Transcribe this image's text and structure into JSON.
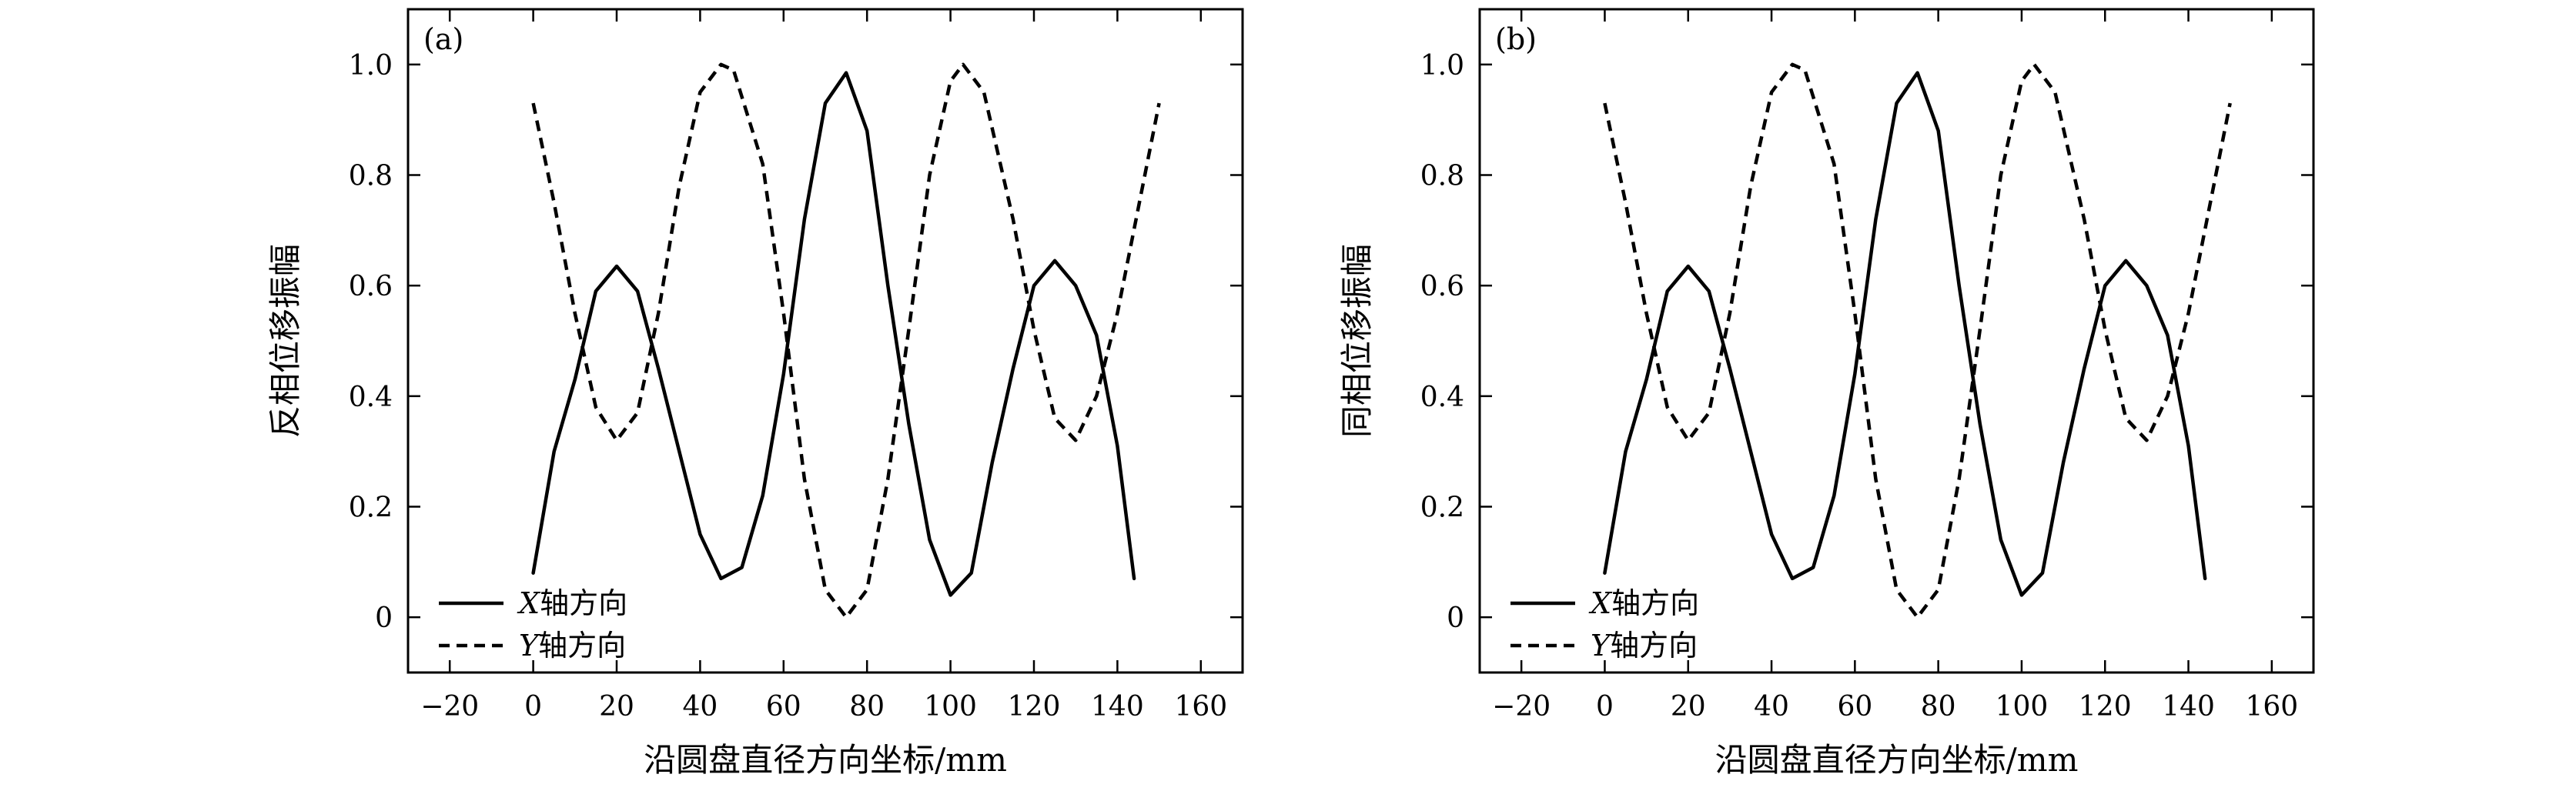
{
  "colors": {
    "background": "#ffffff",
    "ink": "#000000"
  },
  "chart_data": [
    {
      "type": "line",
      "panel_label": "(a)",
      "xlabel": "沿圆盘直径方向坐标/mm",
      "ylabel": "反相位移振幅",
      "xlim": [
        -30,
        170
      ],
      "ylim": [
        -0.1,
        1.1
      ],
      "xticks": [
        -20,
        0,
        20,
        40,
        60,
        80,
        100,
        120,
        140,
        160
      ],
      "yticks": [
        0,
        0.2,
        0.4,
        0.6,
        0.8,
        1.0
      ],
      "xtick_labels": [
        "−20",
        "0",
        "20",
        "40",
        "60",
        "80",
        "100",
        "120",
        "140",
        "160"
      ],
      "ytick_labels": [
        "0",
        "0.2",
        "0.4",
        "0.6",
        "0.8",
        "1.0"
      ],
      "grid": false,
      "legend_position": "bottom-left",
      "series": [
        {
          "name_axis": "X",
          "name_suffix": "轴方向",
          "style": "solid",
          "x": [
            0,
            5,
            10,
            15,
            20,
            25,
            30,
            35,
            40,
            45,
            50,
            55,
            60,
            65,
            70,
            75,
            80,
            85,
            90,
            95,
            100,
            105,
            110,
            115,
            120,
            125,
            130,
            135,
            140,
            144
          ],
          "y": [
            0.08,
            0.3,
            0.43,
            0.59,
            0.635,
            0.59,
            0.45,
            0.3,
            0.15,
            0.07,
            0.09,
            0.22,
            0.44,
            0.72,
            0.93,
            0.985,
            0.88,
            0.6,
            0.35,
            0.14,
            0.04,
            0.08,
            0.28,
            0.45,
            0.6,
            0.645,
            0.6,
            0.51,
            0.31,
            0.07
          ]
        },
        {
          "name_axis": "Y",
          "name_suffix": "轴方向",
          "style": "dashed",
          "x": [
            0,
            5,
            10,
            15,
            20,
            25,
            30,
            35,
            40,
            45,
            48,
            55,
            60,
            65,
            70,
            75,
            80,
            85,
            90,
            95,
            100,
            103,
            108,
            115,
            120,
            125,
            130,
            135,
            140,
            145,
            150
          ],
          "y": [
            0.93,
            0.75,
            0.55,
            0.38,
            0.32,
            0.37,
            0.55,
            0.78,
            0.95,
            1.0,
            0.99,
            0.82,
            0.55,
            0.25,
            0.05,
            0.0,
            0.05,
            0.25,
            0.52,
            0.8,
            0.97,
            1.0,
            0.95,
            0.72,
            0.52,
            0.36,
            0.32,
            0.4,
            0.55,
            0.74,
            0.93
          ]
        }
      ]
    },
    {
      "type": "line",
      "panel_label": "(b)",
      "xlabel": "沿圆盘直径方向坐标/mm",
      "ylabel": "同相位移振幅",
      "xlim": [
        -30,
        170
      ],
      "ylim": [
        -0.1,
        1.1
      ],
      "xticks": [
        -20,
        0,
        20,
        40,
        60,
        80,
        100,
        120,
        140,
        160
      ],
      "yticks": [
        0,
        0.2,
        0.4,
        0.6,
        0.8,
        1.0
      ],
      "xtick_labels": [
        "−20",
        "0",
        "20",
        "40",
        "60",
        "80",
        "100",
        "120",
        "140",
        "160"
      ],
      "ytick_labels": [
        "0",
        "0.2",
        "0.4",
        "0.6",
        "0.8",
        "1.0"
      ],
      "grid": false,
      "legend_position": "bottom-left",
      "series": [
        {
          "name_axis": "X",
          "name_suffix": "轴方向",
          "style": "solid",
          "x": [
            0,
            5,
            10,
            15,
            20,
            25,
            30,
            35,
            40,
            45,
            50,
            55,
            60,
            65,
            70,
            75,
            80,
            85,
            90,
            95,
            100,
            105,
            110,
            115,
            120,
            125,
            130,
            135,
            140,
            144
          ],
          "y": [
            0.08,
            0.3,
            0.43,
            0.59,
            0.635,
            0.59,
            0.45,
            0.3,
            0.15,
            0.07,
            0.09,
            0.22,
            0.44,
            0.72,
            0.93,
            0.985,
            0.88,
            0.6,
            0.35,
            0.14,
            0.04,
            0.08,
            0.28,
            0.45,
            0.6,
            0.645,
            0.6,
            0.51,
            0.31,
            0.07
          ]
        },
        {
          "name_axis": "Y",
          "name_suffix": "轴方向",
          "style": "dashed",
          "x": [
            0,
            5,
            10,
            15,
            20,
            25,
            30,
            35,
            40,
            45,
            48,
            55,
            60,
            65,
            70,
            75,
            80,
            85,
            90,
            95,
            100,
            103,
            108,
            115,
            120,
            125,
            130,
            135,
            140,
            145,
            150
          ],
          "y": [
            0.93,
            0.75,
            0.55,
            0.38,
            0.32,
            0.37,
            0.55,
            0.78,
            0.95,
            1.0,
            0.99,
            0.82,
            0.55,
            0.25,
            0.05,
            0.0,
            0.05,
            0.25,
            0.52,
            0.8,
            0.97,
            1.0,
            0.95,
            0.72,
            0.52,
            0.36,
            0.32,
            0.4,
            0.55,
            0.74,
            0.93
          ]
        }
      ]
    }
  ]
}
